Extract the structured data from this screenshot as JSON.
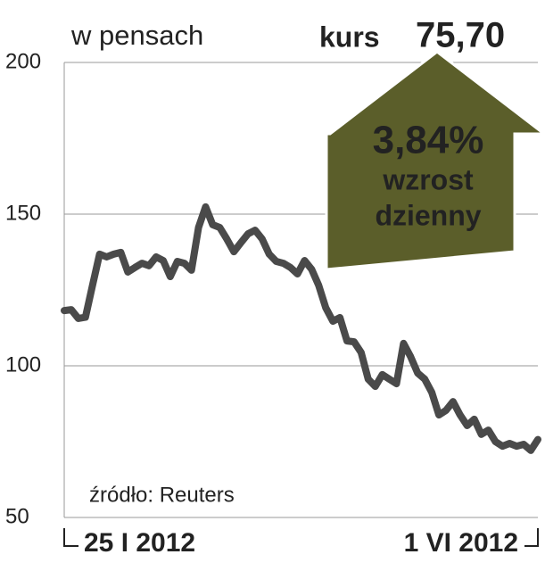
{
  "chart_data": {
    "type": "line",
    "title": "w pensach",
    "price_label": "kurs",
    "price_value": "75,70",
    "annotation": {
      "change": "3,84%",
      "line1": "wzrost",
      "line2": "dzienny"
    },
    "source": "źródło: Reuters",
    "categories": [
      "25 I 2012",
      null,
      null,
      null,
      null,
      null,
      null,
      null,
      null,
      null,
      null,
      null,
      null,
      null,
      null,
      null,
      null,
      null,
      null,
      null,
      null,
      null,
      null,
      null,
      null,
      null,
      null,
      null,
      null,
      null,
      null,
      null,
      null,
      null,
      null,
      null,
      null,
      null,
      null,
      null,
      null,
      null,
      null,
      null,
      null,
      null,
      null,
      null,
      null,
      null,
      null,
      null,
      null,
      null,
      null,
      null,
      null,
      null,
      null,
      null,
      null,
      null,
      null,
      null,
      null,
      null,
      null,
      "1 VI 2012"
    ],
    "values": [
      118.2,
      118.5,
      115.6,
      116,
      126.5,
      136.8,
      135.9,
      136.8,
      137.4,
      130.9,
      132.4,
      133.8,
      133,
      135.9,
      134.7,
      129.4,
      134.4,
      133.8,
      131.5,
      145.6,
      152.4,
      146.5,
      145.6,
      141.8,
      137.6,
      140.6,
      143.5,
      144.7,
      141.8,
      136.8,
      134.4,
      133.8,
      132.4,
      130.3,
      134.7,
      131.8,
      126.5,
      119.1,
      114.7,
      115.9,
      108.2,
      107.9,
      104.4,
      95.6,
      93.2,
      97.1,
      95.6,
      94.1,
      107.4,
      103,
      97.6,
      95.6,
      91.2,
      83.8,
      85.3,
      88.2,
      83.8,
      80.3,
      82.4,
      77.4,
      78.8,
      75,
      73.5,
      74.4,
      73.5,
      74.1,
      72.1,
      75.7
    ],
    "color": "#4a4a4a",
    "annotation_color": "#5b5e2a",
    "ylim": [
      50,
      200
    ],
    "yticks": [
      50,
      100,
      150,
      200
    ],
    "grid": true
  }
}
